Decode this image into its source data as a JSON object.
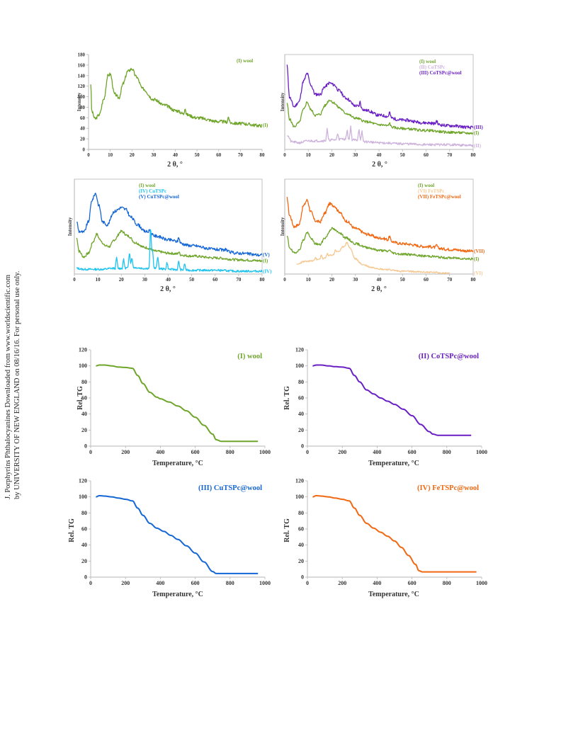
{
  "watermark": {
    "line1": "J. Porphyrins Phthalocyanines Downloaded from www.worldscientific.com",
    "line2": "by UNIVERSITY OF NEW ENGLAND on 08/16/16. For personal use only."
  },
  "colors": {
    "wool": "#6ea52a",
    "CoTSPc": "#cdb3dc",
    "CoTSPc@wool": "#6a1fc4",
    "CuTSPc": "#1fc3f0",
    "CuTSPc@wool": "#1466d6",
    "FeTSPc": "#f6c891",
    "FeTSPc@wool": "#f26711",
    "axis": "#b5b5b5",
    "text": "#333333"
  },
  "chart_data": [
    {
      "id": "xrd-a",
      "type": "line",
      "xlabel": "2 θ, °",
      "ylabel": "Intensity",
      "xlim": [
        0,
        80
      ],
      "ylim": [
        0,
        180
      ],
      "xticks": [
        "0",
        "10",
        "20",
        "30",
        "40",
        "50",
        "60",
        "70",
        "80"
      ],
      "yticks": [
        "0",
        "20",
        "40",
        "60",
        "80",
        "100",
        "120",
        "140",
        "160",
        "180"
      ],
      "framed": false,
      "legend": [
        {
          "text": "(I) wool",
          "series": "wool"
        }
      ],
      "series": [
        {
          "key": "wool",
          "name": "(I)",
          "noise": 3,
          "seed": 3,
          "x": [
            1,
            1.5,
            3,
            5,
            7,
            9,
            10,
            12,
            14,
            16,
            18,
            20,
            22,
            25,
            30,
            35,
            40,
            45,
            50,
            60,
            70,
            80
          ],
          "y": [
            125,
            72,
            58,
            66,
            95,
            140,
            143,
            105,
            98,
            125,
            148,
            153,
            138,
            115,
            95,
            84,
            74,
            66,
            60,
            53,
            49,
            45
          ],
          "spikes": [
            [
              44.5,
              15
            ],
            [
              64.5,
              12
            ]
          ]
        }
      ]
    },
    {
      "id": "xrd-b",
      "type": "line",
      "xlabel": "2 θ, °",
      "ylabel": "Intensity",
      "xlim": [
        0,
        80
      ],
      "ylim": [
        0,
        100
      ],
      "xticks": [
        "0",
        "10",
        "20",
        "30",
        "40",
        "50",
        "60",
        "70",
        "80"
      ],
      "framed": true,
      "legend": [
        {
          "text": "(I) wool",
          "series": "wool"
        },
        {
          "text": "(II) CoTSPc",
          "series": "CoTSPc"
        },
        {
          "text": "(III) CoTSPc@wool",
          "series": "CoTSPc@wool"
        }
      ],
      "series": [
        {
          "key": "CoTSPc@wool",
          "name": "(III)",
          "noise": 1.6,
          "seed": 11,
          "x": [
            1,
            2,
            4,
            6,
            8,
            9.5,
            11,
            13,
            15,
            17,
            19,
            21,
            23,
            26,
            30,
            35,
            40,
            50,
            60,
            70,
            80
          ],
          "y": [
            88,
            55,
            45,
            50,
            72,
            80,
            68,
            58,
            58,
            66,
            70,
            68,
            62,
            54,
            46,
            41,
            36,
            31,
            28,
            25,
            23
          ],
          "spikes": [
            [
              32,
              6
            ],
            [
              44.5,
              6
            ],
            [
              64.5,
              4
            ]
          ]
        },
        {
          "key": "wool",
          "name": "(I)",
          "noise": 1.3,
          "seed": 5,
          "x": [
            1,
            2,
            4,
            6,
            8,
            9.5,
            11,
            13,
            15,
            17,
            19,
            21,
            23,
            26,
            30,
            35,
            40,
            50,
            60,
            70,
            80
          ],
          "y": [
            48,
            32,
            24,
            28,
            42,
            50,
            42,
            36,
            37,
            46,
            52,
            49,
            44,
            38,
            33,
            29,
            26,
            22,
            20,
            18,
            17
          ],
          "spikes": [
            [
              44.5,
              4
            ]
          ]
        },
        {
          "key": "CoTSPc",
          "name": "(II)",
          "noise": 1.2,
          "seed": 21,
          "x": [
            1,
            3,
            6,
            10,
            15,
            20,
            25,
            30,
            35,
            40,
            50,
            60,
            70,
            80
          ],
          "y": [
            15,
            8,
            7,
            9,
            9,
            10,
            11,
            10,
            8,
            7,
            6,
            5,
            5,
            4
          ],
          "spikes": [
            [
              18,
              12
            ],
            [
              22.5,
              7
            ],
            [
              26.5,
              10
            ],
            [
              28,
              14
            ],
            [
              31.5,
              13
            ],
            [
              32.8,
              10
            ]
          ]
        }
      ]
    },
    {
      "id": "xrd-c",
      "type": "line",
      "xlabel": "2 θ, °",
      "ylabel": "Intensity",
      "xlim": [
        0,
        80
      ],
      "ylim": [
        0,
        100
      ],
      "xticks": [
        "0",
        "10",
        "20",
        "30",
        "40",
        "50",
        "60",
        "70",
        "80"
      ],
      "framed": true,
      "legend": [
        {
          "text": "(I) wool",
          "series": "wool"
        },
        {
          "text": "(IV) CuTSPc",
          "series": "CuTSPc"
        },
        {
          "text": "(V) CuTSPc@wool",
          "series": "CuTSPc@wool"
        }
      ],
      "series": [
        {
          "key": "CuTSPc@wool",
          "name": "(V)",
          "noise": 1.6,
          "seed": 9,
          "x": [
            1,
            2,
            4,
            6,
            7.5,
            9,
            10.5,
            12,
            14,
            17,
            20,
            22,
            24,
            27,
            30,
            35,
            40,
            50,
            60,
            70,
            80
          ],
          "y": [
            55,
            45,
            44,
            55,
            78,
            85,
            72,
            55,
            52,
            66,
            70,
            68,
            60,
            52,
            45,
            40,
            36,
            30,
            26,
            22,
            20
          ],
          "spikes": [
            [
              32,
              4
            ],
            [
              44.5,
              6
            ],
            [
              64.5,
              3
            ]
          ]
        },
        {
          "key": "wool",
          "name": "(I)",
          "noise": 1.3,
          "seed": 7,
          "x": [
            1,
            2,
            4,
            6,
            8,
            9.5,
            11,
            13,
            15,
            17,
            20,
            23,
            26,
            30,
            35,
            40,
            50,
            60,
            70,
            80
          ],
          "y": [
            38,
            24,
            18,
            22,
            34,
            42,
            36,
            30,
            29,
            36,
            45,
            40,
            33,
            28,
            24,
            22,
            19,
            17,
            15,
            14
          ],
          "spikes": [
            [
              44.5,
              3
            ]
          ]
        },
        {
          "key": "CuTSPc",
          "name": "(IV)",
          "noise": 1.1,
          "seed": 13,
          "x": [
            1,
            4,
            8,
            12,
            16,
            20,
            25,
            30,
            35,
            40,
            50,
            60,
            70,
            80
          ],
          "y": [
            6,
            5,
            5,
            5,
            6,
            6,
            7,
            6,
            6,
            5,
            4,
            4,
            3,
            3
          ],
          "spikes": [
            [
              18,
              12
            ],
            [
              21,
              10
            ],
            [
              23.5,
              18
            ],
            [
              24.5,
              12
            ],
            [
              32.5,
              48
            ],
            [
              33.3,
              22
            ],
            [
              35.5,
              14
            ],
            [
              39.5,
              8
            ],
            [
              44.5,
              10
            ],
            [
              47,
              7
            ]
          ]
        }
      ]
    },
    {
      "id": "xrd-d",
      "type": "line",
      "xlabel": "2 θ, °",
      "ylabel": "Intensity",
      "xlim": [
        0,
        80
      ],
      "ylim": [
        0,
        100
      ],
      "xticks": [
        "0",
        "10",
        "20",
        "30",
        "40",
        "50",
        "60",
        "70",
        "80"
      ],
      "framed": true,
      "legend": [
        {
          "text": "(I) wool",
          "series": "wool"
        },
        {
          "text": "(VI) FeTSPc",
          "series": "FeTSPc"
        },
        {
          "text": "(VII) FeTSPc@wool",
          "series": "FeTSPc@wool"
        }
      ],
      "series": [
        {
          "key": "FeTSPc@wool",
          "name": "(VII)",
          "noise": 1.5,
          "seed": 17,
          "x": [
            1,
            2,
            4,
            6,
            8,
            9.5,
            11,
            13,
            15,
            17,
            19,
            21,
            23,
            26,
            30,
            35,
            40,
            50,
            60,
            70,
            80
          ],
          "y": [
            80,
            62,
            50,
            52,
            72,
            78,
            66,
            56,
            55,
            64,
            74,
            72,
            66,
            56,
            48,
            42,
            38,
            32,
            29,
            26,
            24
          ],
          "spikes": [
            [
              44.5,
              5
            ],
            [
              64.5,
              3
            ]
          ]
        },
        {
          "key": "wool",
          "name": "(I)",
          "noise": 1.2,
          "seed": 19,
          "x": [
            1,
            2,
            4,
            6,
            8,
            9.5,
            11,
            13,
            15,
            17,
            20,
            23,
            26,
            30,
            35,
            40,
            50,
            60,
            70,
            80
          ],
          "y": [
            40,
            28,
            22,
            25,
            36,
            44,
            38,
            32,
            31,
            38,
            48,
            44,
            38,
            32,
            28,
            25,
            21,
            19,
            17,
            16
          ],
          "spikes": [
            [
              44.5,
              3
            ]
          ]
        },
        {
          "key": "FeTSPc",
          "name": "(VI)",
          "noise": 0.9,
          "seed": 23,
          "x": [
            5,
            8,
            12,
            16,
            20,
            23,
            25,
            26.5,
            27.5,
            30,
            33,
            37,
            42,
            50,
            60,
            70
          ],
          "y": [
            10,
            13,
            14,
            16,
            20,
            24,
            29,
            33,
            28,
            16,
            10,
            7,
            5,
            3,
            2,
            1
          ],
          "spikes": [
            [
              13,
              4
            ],
            [
              15.5,
              5
            ],
            [
              18,
              4
            ],
            [
              21.5,
              4
            ]
          ]
        }
      ]
    },
    {
      "id": "tg-a",
      "type": "line",
      "title": "(I) wool",
      "titleSeries": "wool",
      "xlabel": "Temperature, °C",
      "ylabel": "Rel. TG",
      "xlim": [
        0,
        1000
      ],
      "ylim": [
        0,
        120
      ],
      "xticks": [
        "0",
        "200",
        "400",
        "600",
        "800",
        "1000"
      ],
      "yticks": [
        "0",
        "20",
        "40",
        "60",
        "80",
        "100",
        "120"
      ],
      "series": [
        {
          "key": "wool",
          "x": [
            30,
            50,
            80,
            120,
            160,
            200,
            240,
            270,
            300,
            340,
            380,
            400,
            450,
            500,
            550,
            600,
            650,
            700,
            720,
            750,
            800,
            850,
            900,
            960
          ],
          "y": [
            100,
            101,
            101,
            100,
            98.5,
            98,
            97,
            88,
            78,
            67,
            61,
            59,
            55,
            50,
            44,
            36,
            26,
            15,
            8,
            6,
            6,
            6,
            6,
            6
          ]
        }
      ]
    },
    {
      "id": "tg-b",
      "type": "line",
      "title": "(II) CoTSPc@wool",
      "titleSeries": "CoTSPc@wool",
      "xlabel": "Temperature, °C",
      "ylabel": "Rel. TG",
      "xlim": [
        0,
        1000
      ],
      "ylim": [
        0,
        120
      ],
      "xticks": [
        "0",
        "200",
        "400",
        "600",
        "800",
        "1000"
      ],
      "yticks": [
        "0",
        "20",
        "40",
        "60",
        "80",
        "100",
        "120"
      ],
      "series": [
        {
          "key": "CoTSPc@wool",
          "x": [
            30,
            50,
            80,
            120,
            160,
            200,
            240,
            270,
            300,
            340,
            380,
            420,
            460,
            500,
            550,
            600,
            650,
            700,
            720,
            750,
            800,
            850,
            900,
            940
          ],
          "y": [
            100,
            101,
            101,
            100,
            99,
            98.5,
            97,
            88,
            80,
            70,
            65,
            60,
            56,
            52,
            46,
            38,
            27,
            18,
            15,
            13.5,
            13.5,
            13.5,
            13.5,
            13.5
          ]
        }
      ]
    },
    {
      "id": "tg-c",
      "type": "line",
      "title": "(III) CuTSPc@wool",
      "titleSeries": "CuTSPc@wool",
      "xlabel": "Temperature, °C",
      "ylabel": "Rel. TG",
      "xlim": [
        0,
        1000
      ],
      "ylim": [
        0,
        120
      ],
      "xticks": [
        "0",
        "200",
        "400",
        "600",
        "800",
        "1000"
      ],
      "yticks": [
        "0",
        "20",
        "40",
        "60",
        "80",
        "100",
        "120"
      ],
      "series": [
        {
          "key": "CuTSPc@wool",
          "x": [
            30,
            50,
            80,
            120,
            160,
            200,
            240,
            270,
            300,
            340,
            380,
            420,
            460,
            500,
            550,
            600,
            650,
            700,
            720,
            750,
            800,
            900,
            960
          ],
          "y": [
            100,
            101.5,
            101,
            100,
            98.5,
            97,
            95,
            86,
            77,
            67,
            61,
            57,
            52,
            47,
            39,
            30,
            19,
            7,
            4.5,
            4.5,
            4.5,
            4.5,
            4.5
          ]
        }
      ]
    },
    {
      "id": "tg-d",
      "type": "line",
      "title": "(IV) FeTSPc@wool",
      "titleSeries": "FeTSPc@wool",
      "xlabel": "Temperature, °C",
      "ylabel": "Rel. TG",
      "xlim": [
        0,
        1000
      ],
      "ylim": [
        0,
        120
      ],
      "xticks": [
        "0",
        "200",
        "400",
        "600",
        "800",
        "1000"
      ],
      "yticks": [
        "0",
        "20",
        "40",
        "60",
        "80",
        "100",
        "120"
      ],
      "series": [
        {
          "key": "FeTSPc@wool",
          "x": [
            30,
            50,
            80,
            120,
            160,
            200,
            240,
            270,
            300,
            340,
            380,
            420,
            460,
            500,
            540,
            580,
            620,
            640,
            660,
            700,
            800,
            900,
            970
          ],
          "y": [
            100,
            101.5,
            101,
            100,
            98.5,
            97,
            95,
            86,
            77,
            67,
            61,
            56,
            51,
            45,
            37,
            27,
            16,
            8,
            6.5,
            6.5,
            6.5,
            6.5,
            6.5
          ]
        }
      ]
    }
  ]
}
